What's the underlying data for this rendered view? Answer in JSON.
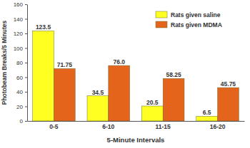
{
  "chart_data": {
    "type": "bar",
    "x_label": "5-Minute Intervals",
    "y_label": "Photobeam Breaks/5 Minutes",
    "categories": [
      "0-5",
      "6-10",
      "11-15",
      "16-20"
    ],
    "series": [
      {
        "name": "Rats given saline",
        "color": "#ffff22",
        "values": [
          123.5,
          34.5,
          20.5,
          6.5
        ]
      },
      {
        "name": "Rats given MDMA",
        "color": "#e4641c",
        "values": [
          71.75,
          76.0,
          58.25,
          45.75
        ],
        "value_labels": [
          "71.75",
          "76.0",
          "58.25",
          "45.75"
        ]
      }
    ],
    "ylim": [
      0,
      160
    ],
    "yticks": [
      0,
      20,
      40,
      60,
      80,
      100,
      120,
      140,
      160
    ],
    "grid": false,
    "legend": "upper right",
    "data_labels": true
  }
}
